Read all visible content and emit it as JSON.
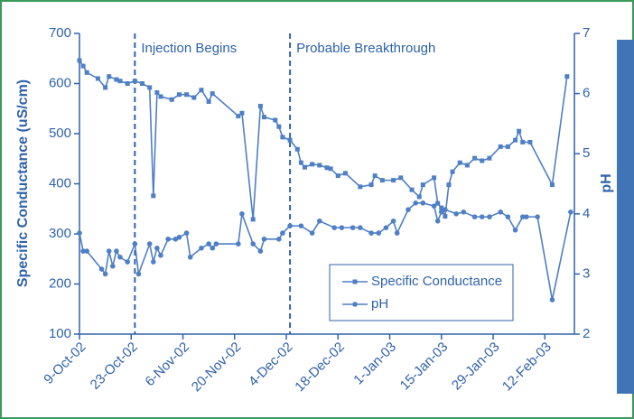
{
  "chart_data": {
    "type": "line",
    "y_label": "Specific Conductance (uS/cm)",
    "y2_label": "pH",
    "xlim": [
      "2002-10-09",
      "2003-02-20"
    ],
    "xticks": [
      {
        "value": "2002-10-09",
        "label": "9-Oct-02"
      },
      {
        "value": "2002-10-23",
        "label": "23-Oct-02"
      },
      {
        "value": "2002-11-06",
        "label": "6-Nov-02"
      },
      {
        "value": "2002-11-20",
        "label": "20-Nov-02"
      },
      {
        "value": "2002-12-04",
        "label": "4-Dec-02"
      },
      {
        "value": "2002-12-18",
        "label": "18-Dec-02"
      },
      {
        "value": "2003-01-01",
        "label": "1-Jan-03"
      },
      {
        "value": "2003-01-15",
        "label": "15-Jan-03"
      },
      {
        "value": "2003-01-29",
        "label": "29-Jan-03"
      },
      {
        "value": "2003-02-12",
        "label": "12-Feb-03"
      }
    ],
    "ylim": [
      100,
      700
    ],
    "yticks": [
      100,
      200,
      300,
      400,
      500,
      600,
      700
    ],
    "y2lim": [
      2,
      7
    ],
    "y2ticks": [
      2,
      3,
      4,
      5,
      6,
      7
    ],
    "legend": "lower right",
    "annotations": [
      {
        "text": "Injection Begins",
        "x": "2002-10-24"
      },
      {
        "text": "Probable Breakthrough",
        "x": "2002-12-05"
      }
    ],
    "series": [
      {
        "name": "Specific Conductance",
        "color": "#4f7fc4",
        "marker": "square",
        "x": [
          "2002-10-09",
          "2002-10-10",
          "2002-10-11",
          "2002-10-14",
          "2002-10-16",
          "2002-10-17",
          "2002-10-19",
          "2002-10-20",
          "2002-10-22",
          "2002-10-24",
          "2002-10-26",
          "2002-10-28",
          "2002-10-29",
          "2002-10-30",
          "2002-10-31",
          "2002-11-03",
          "2002-11-05",
          "2002-11-07",
          "2002-11-09",
          "2002-11-11",
          "2002-11-13",
          "2002-11-14",
          "2002-11-21",
          "2002-11-22",
          "2002-11-25",
          "2002-11-27",
          "2002-11-28",
          "2002-12-01",
          "2002-12-02",
          "2002-12-03",
          "2002-12-05",
          "2002-12-07",
          "2002-12-08",
          "2002-12-09",
          "2002-12-11",
          "2002-12-13",
          "2002-12-15",
          "2002-12-16",
          "2002-12-18",
          "2002-12-20",
          "2002-12-24",
          "2002-12-27",
          "2002-12-28",
          "2002-12-30",
          "2003-01-02",
          "2003-01-04",
          "2003-01-07",
          "2003-01-09",
          "2003-01-10",
          "2003-01-13",
          "2003-01-14",
          "2003-01-15",
          "2003-01-16",
          "2003-01-17",
          "2003-01-18",
          "2003-01-20",
          "2003-01-22",
          "2003-01-24",
          "2003-01-26",
          "2003-01-28",
          "2003-01-31",
          "2003-02-02",
          "2003-02-04",
          "2003-02-05",
          "2003-02-06",
          "2003-02-08",
          "2003-02-14",
          "2003-02-18"
        ],
        "values": [
          646,
          635,
          622,
          610,
          592,
          614,
          608,
          605,
          600,
          605,
          600,
          592,
          376,
          582,
          574,
          568,
          578,
          578,
          572,
          587,
          564,
          580,
          535,
          541,
          329,
          555,
          533,
          527,
          514,
          493,
          487,
          469,
          442,
          433,
          439,
          437,
          432,
          430,
          416,
          421,
          394,
          398,
          416,
          407,
          407,
          412,
          388,
          374,
          398,
          412,
          361,
          352,
          335,
          398,
          424,
          442,
          437,
          451,
          446,
          451,
          474,
          474,
          487,
          505,
          483,
          483,
          398,
          614
        ]
      },
      {
        "name": "pH",
        "color": "#4f7fc4",
        "marker": "circle",
        "axis": "y2",
        "x": [
          "2002-10-09",
          "2002-10-10",
          "2002-10-11",
          "2002-10-15",
          "2002-10-16",
          "2002-10-17",
          "2002-10-18",
          "2002-10-19",
          "2002-10-20",
          "2002-10-22",
          "2002-10-24",
          "2002-10-25",
          "2002-10-28",
          "2002-10-29",
          "2002-10-30",
          "2002-10-31",
          "2002-11-02",
          "2002-11-04",
          "2002-11-05",
          "2002-11-07",
          "2002-11-08",
          "2002-11-11",
          "2002-11-13",
          "2002-11-14",
          "2002-11-15",
          "2002-11-21",
          "2002-11-22",
          "2002-11-25",
          "2002-11-27",
          "2002-11-28",
          "2002-12-02",
          "2002-12-03",
          "2002-12-05",
          "2002-12-08",
          "2002-12-11",
          "2002-12-13",
          "2002-12-17",
          "2002-12-19",
          "2002-12-22",
          "2002-12-24",
          "2002-12-27",
          "2002-12-29",
          "2002-12-31",
          "2003-01-02",
          "2003-01-03",
          "2003-01-06",
          "2003-01-08",
          "2003-01-10",
          "2003-01-13",
          "2003-01-14",
          "2003-01-15",
          "2003-01-16",
          "2003-01-19",
          "2003-01-21",
          "2003-01-24",
          "2003-01-26",
          "2003-01-28",
          "2003-01-31",
          "2003-02-02",
          "2003-02-04",
          "2003-02-06",
          "2003-02-07",
          "2003-02-10",
          "2003-02-14",
          "2003-02-19"
        ],
        "values": [
          3.68,
          3.38,
          3.38,
          3.08,
          3.0,
          3.38,
          3.13,
          3.38,
          3.28,
          3.2,
          3.5,
          3.0,
          3.5,
          3.2,
          3.43,
          3.31,
          3.58,
          3.58,
          3.61,
          3.68,
          3.28,
          3.43,
          3.5,
          3.43,
          3.5,
          3.5,
          4.0,
          3.5,
          3.38,
          3.58,
          3.58,
          3.68,
          3.8,
          3.8,
          3.68,
          3.88,
          3.77,
          3.77,
          3.77,
          3.77,
          3.68,
          3.68,
          3.77,
          3.88,
          3.68,
          4.07,
          4.18,
          4.18,
          4.13,
          3.88,
          4.03,
          4.07,
          4.0,
          4.03,
          3.95,
          3.95,
          3.95,
          4.03,
          3.95,
          3.73,
          3.95,
          3.95,
          3.95,
          2.57,
          4.03
        ]
      }
    ]
  }
}
